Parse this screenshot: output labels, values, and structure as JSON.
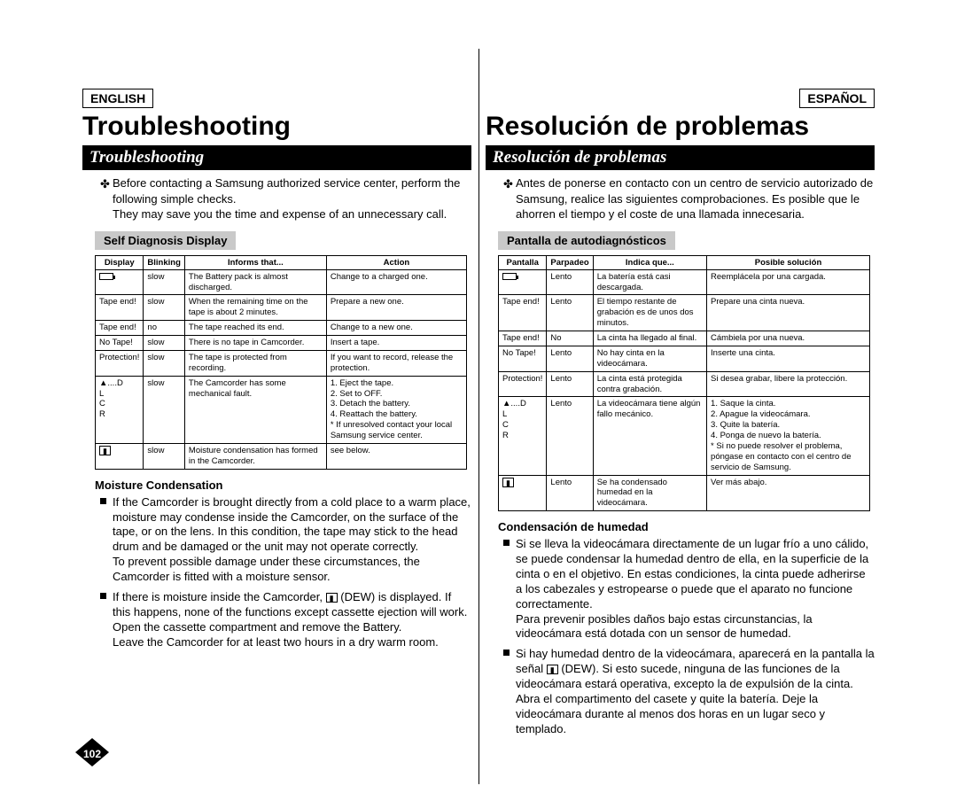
{
  "english": {
    "lang": "ENGLISH",
    "title": "Troubleshooting",
    "section": "Troubleshooting",
    "intro1": "Before contacting a Samsung authorized service center, perform the following simple checks.",
    "intro2": "They may save you the time and expense of an unnecessary call.",
    "tableHeading": "Self Diagnosis Display",
    "headers": {
      "c1": "Display",
      "c2": "Blinking",
      "c3": "Informs that...",
      "c4": "Action"
    },
    "rows": [
      {
        "d": "BATT_ICON",
        "b": "slow",
        "i": "The Battery pack is almost discharged.",
        "a": "Change to a charged one."
      },
      {
        "d": "Tape end!",
        "b": "slow",
        "i": "When the remaining time on the tape is about 2 minutes.",
        "a": "Prepare a new one."
      },
      {
        "d": "Tape end!",
        "b": "no",
        "i": "The tape reached its end.",
        "a": "Change to a new one."
      },
      {
        "d": "No Tape!",
        "b": "slow",
        "i": "There is no tape in Camcorder.",
        "a": "Insert a tape."
      },
      {
        "d": "Protection!",
        "b": "slow",
        "i": "The tape is protected from recording.",
        "a": "If you want to record, release the protection."
      },
      {
        "d": "▲....D\nL\nC\nR",
        "b": "slow",
        "i": "The Camcorder has some mechanical fault.",
        "a": "1. Eject the tape.\n2. Set to OFF.\n3. Detach the battery.\n4. Reattach the battery.\n* If unresolved contact your local Samsung service center."
      },
      {
        "d": "DEW_ICON",
        "b": "slow",
        "i": "Moisture condensation has formed in the Camcorder.",
        "a": "see below."
      }
    ],
    "moistureTitle": "Moisture Condensation",
    "moisture1": "If the Camcorder is brought directly from a cold place to a warm place, moisture may condense inside the Camcorder, on the surface of the tape, or on the lens. In this condition, the tape may stick to the head drum and be damaged or the unit may not operate correctly.\nTo prevent possible damage under these circumstances, the Camcorder is fitted with a moisture sensor.",
    "moisture2a": "If there is moisture inside the Camcorder, ",
    "moisture2b": " (DEW) is displayed. If this happens, none of the functions except cassette ejection will work.\nOpen the cassette compartment and remove the Battery.\nLeave the Camcorder for at least two hours in a dry warm room.",
    "pageNum": "102"
  },
  "spanish": {
    "lang": "ESPAÑOL",
    "title": "Resolución de problemas",
    "section": "Resolución de problemas",
    "intro1": "Antes de ponerse en contacto con un centro de servicio autorizado de Samsung, realice las siguientes comprobaciones. Es posible que le ahorren el tiempo y el coste de una llamada innecesaria.",
    "tableHeading": "Pantalla de autodiagnósticos",
    "headers": {
      "c1": "Pantalla",
      "c2": "Parpadeo",
      "c3": "Indica que...",
      "c4": "Posible solución"
    },
    "rows": [
      {
        "d": "BATT_ICON",
        "b": "Lento",
        "i": "La batería está casi descargada.",
        "a": "Reemplácela por una cargada."
      },
      {
        "d": "Tape end!",
        "b": "Lento",
        "i": "El tiempo restante de grabación es de unos dos minutos.",
        "a": "Prepare una cinta nueva."
      },
      {
        "d": "Tape end!",
        "b": "No",
        "i": "La cinta ha llegado al final.",
        "a": "Cámbiela por una nueva."
      },
      {
        "d": "No Tape!",
        "b": "Lento",
        "i": "No hay cinta en la videocámara.",
        "a": "Inserte una cinta."
      },
      {
        "d": "Protection!",
        "b": "Lento",
        "i": "La cinta está protegida contra grabación.",
        "a": "Si desea grabar, libere la protección."
      },
      {
        "d": "▲....D\nL\nC\nR",
        "b": "Lento",
        "i": "La videocámara tiene algún fallo mecánico.",
        "a": "1. Saque la cinta.\n2. Apague la videocámara.\n3. Quite la batería.\n4. Ponga de nuevo la batería.\n* Si no puede resolver el problema, póngase en contacto con el centro de servicio de Samsung."
      },
      {
        "d": "DEW_ICON",
        "b": "Lento",
        "i": "Se ha condensado humedad en la videocámara.",
        "a": "Ver más abajo."
      }
    ],
    "moistureTitle": "Condensación de humedad",
    "moisture1": "Si se lleva la videocámara directamente de un lugar frío a uno cálido, se puede condensar la humedad dentro de ella, en la superficie de la cinta o en el objetivo. En estas condiciones, la cinta puede adherirse a los cabezales y estropearse o puede que el aparato no funcione correctamente.\nPara prevenir posibles daños bajo estas circunstancias, la videocámara está dotada con un sensor de humedad.",
    "moisture2a": "Si hay humedad dentro de la videocámara, aparecerá en la pantalla la señal ",
    "moisture2b": " (DEW). Si esto sucede, ninguna de las funciones de la videocámara estará operativa, excepto la de expulsión de la cinta. Abra el compartimento del casete y quite la batería. Deje la videocámara durante al menos dos horas en un lugar seco y templado."
  }
}
